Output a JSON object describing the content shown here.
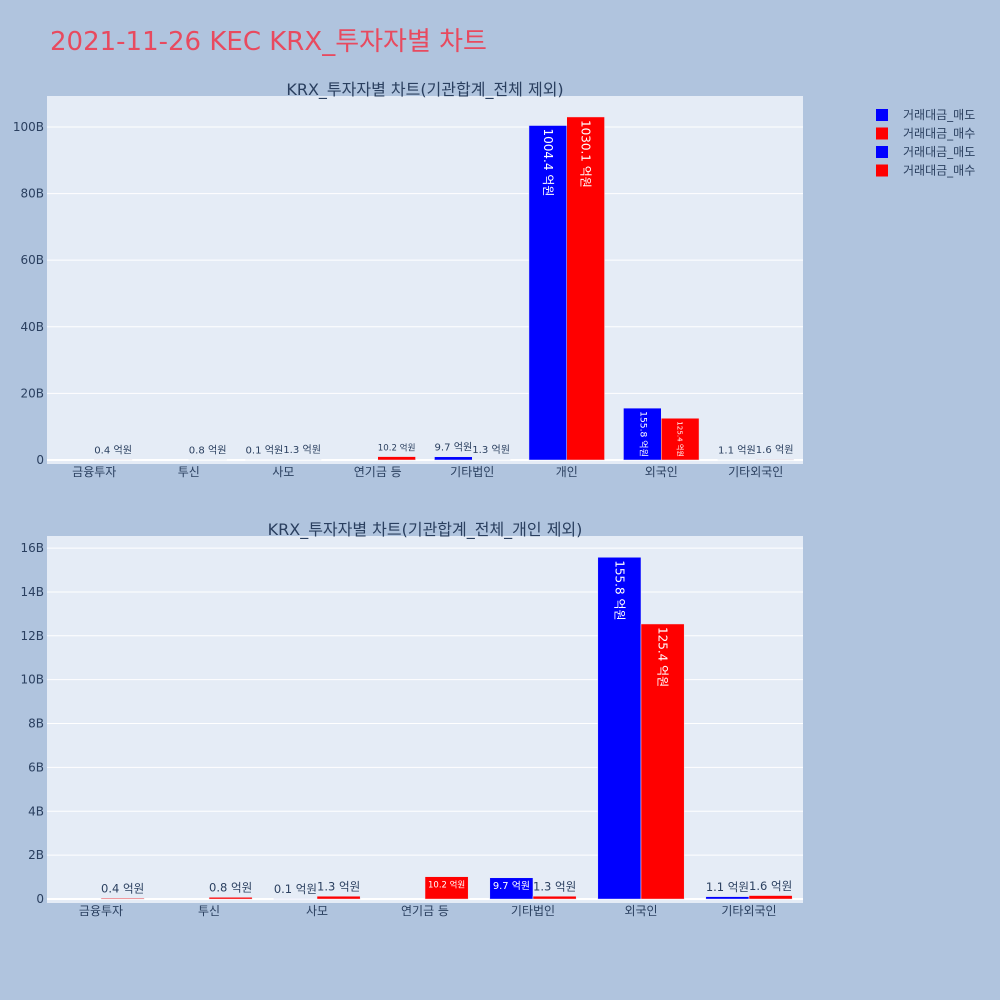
{
  "page": {
    "title": "2021-11-26 KEC KRX_투자자별 차트",
    "background": "#b0c4de",
    "title_color": "#e84a5f",
    "plot_background": "#e5ecf6",
    "grid_color": "#ffffff",
    "text_color": "#2a3f5f",
    "inside_label_color": "#ffffff"
  },
  "legend": {
    "placement": "top-right"
  },
  "chart_data": [
    {
      "type": "bar",
      "title": "KRX_투자자별 차트(기관합계_전체 제외)",
      "categories": [
        "금융투자",
        "투신",
        "사모",
        "연기금 등",
        "기타법인",
        "개인",
        "외국인",
        "기타외국인"
      ],
      "ylim": [
        -1.2,
        109.3
      ],
      "yticks": [
        0,
        20,
        40,
        60,
        80,
        100
      ],
      "ytick_labels": [
        "0",
        "20B",
        "40B",
        "60B",
        "80B",
        "100B"
      ],
      "grid": true,
      "series": [
        {
          "name": "거래대금_매도",
          "color": "#0000ff",
          "values": [
            0,
            0,
            0.01,
            0,
            0.97,
            100.44,
            15.58,
            0.11
          ],
          "labels": [
            "",
            "",
            "0.1 억원",
            "",
            "9.7 억원",
            "1004.4 억원",
            "155.8 억원",
            "1.1 억원"
          ]
        },
        {
          "name": "거래대금_매수",
          "color": "#ff0000",
          "values": [
            0.04,
            0.08,
            0.13,
            1.02,
            0.13,
            103.01,
            12.54,
            0.16
          ],
          "labels": [
            "0.4 억원",
            "0.8 억원",
            "1.3 억원",
            "10.2 억원",
            "1.3 억원",
            "1030.1 억원",
            "125.4 억원",
            "1.6 억원"
          ]
        }
      ]
    },
    {
      "type": "bar",
      "title": "KRX_투자자별 차트(기관합계_전체_개인 제외)",
      "categories": [
        "금융투자",
        "투신",
        "사모",
        "연기금 등",
        "기타법인",
        "외국인",
        "기타외국인"
      ],
      "ylim": [
        -0.18,
        16.55
      ],
      "yticks": [
        0,
        2,
        4,
        6,
        8,
        10,
        12,
        14,
        16
      ],
      "ytick_labels": [
        "0",
        "2B",
        "4B",
        "6B",
        "8B",
        "10B",
        "12B",
        "14B",
        "16B"
      ],
      "grid": true,
      "series": [
        {
          "name": "거래대금_매도",
          "color": "#0000ff",
          "values": [
            0,
            0,
            0.01,
            0,
            0.97,
            15.58,
            0.11
          ],
          "labels": [
            "",
            "",
            "0.1 억원",
            "",
            "9.7 억원",
            "155.8 억원",
            "1.1 억원"
          ]
        },
        {
          "name": "거래대금_매수",
          "color": "#ff0000",
          "values": [
            0.04,
            0.08,
            0.13,
            1.02,
            0.13,
            12.54,
            0.16
          ],
          "labels": [
            "0.4 억원",
            "0.8 억원",
            "1.3 억원",
            "10.2 억원",
            "1.3 억원",
            "125.4 억원",
            "1.6 억원"
          ]
        }
      ]
    }
  ]
}
